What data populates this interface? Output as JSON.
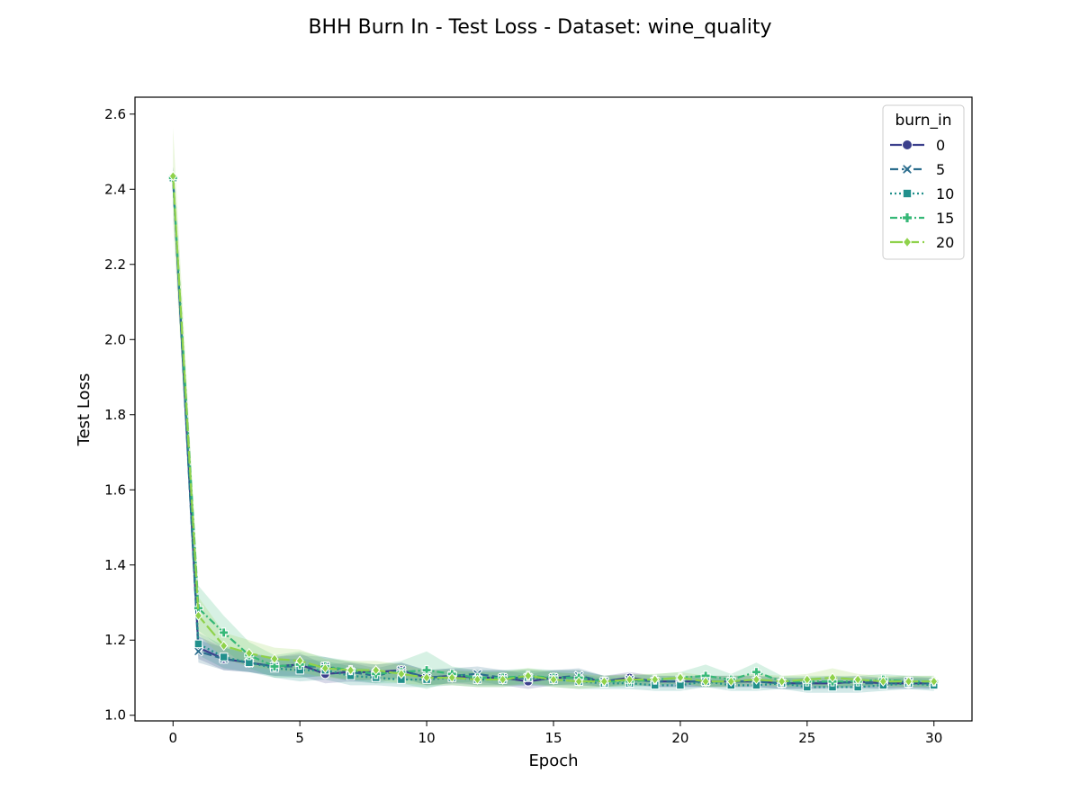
{
  "chart_data": {
    "type": "line",
    "title": "BHH Burn In - Test Loss - Dataset: wine_quality",
    "xlabel": "Epoch",
    "ylabel": "Test Loss",
    "xlim": [
      -1.5,
      31.5
    ],
    "ylim": [
      0.985,
      2.645
    ],
    "xticks": [
      0,
      5,
      10,
      15,
      20,
      25,
      30
    ],
    "yticks": [
      1.0,
      1.2,
      1.4,
      1.6,
      1.8,
      2.0,
      2.2,
      2.4,
      2.6
    ],
    "ytick_labels": [
      "1.0",
      "1.2",
      "1.4",
      "1.6",
      "1.8",
      "2.0",
      "2.2",
      "2.4",
      "2.6"
    ],
    "grid": false,
    "legend": {
      "title": "burn_in",
      "placement": "top-right"
    },
    "x": [
      0,
      1,
      2,
      3,
      4,
      5,
      6,
      7,
      8,
      9,
      10,
      11,
      12,
      13,
      14,
      15,
      16,
      17,
      18,
      19,
      20,
      21,
      22,
      23,
      24,
      25,
      26,
      27,
      28,
      29,
      30
    ],
    "series": [
      {
        "name": "0",
        "color": "#3b3f8c",
        "marker": "circle",
        "dash": "solid",
        "values": [
          2.43,
          1.18,
          1.15,
          1.14,
          1.13,
          1.135,
          1.11,
          1.115,
          1.115,
          1.12,
          1.1,
          1.105,
          1.1,
          1.1,
          1.09,
          1.1,
          1.1,
          1.09,
          1.1,
          1.09,
          1.09,
          1.09,
          1.09,
          1.09,
          1.085,
          1.085,
          1.085,
          1.09,
          1.085,
          1.085,
          1.085
        ],
        "band": [
          0.03,
          0.03,
          0.03,
          0.025,
          0.025,
          0.03,
          0.025,
          0.025,
          0.02,
          0.02,
          0.02,
          0.02,
          0.02,
          0.02,
          0.02,
          0.02,
          0.02,
          0.015,
          0.015,
          0.015,
          0.015,
          0.015,
          0.015,
          0.015,
          0.015,
          0.015,
          0.015,
          0.015,
          0.015,
          0.015,
          0.015
        ]
      },
      {
        "name": "5",
        "color": "#2c6e8e",
        "marker": "x",
        "dash": "dashed",
        "values": [
          2.43,
          1.17,
          1.15,
          1.14,
          1.13,
          1.13,
          1.13,
          1.115,
          1.105,
          1.12,
          1.1,
          1.105,
          1.11,
          1.1,
          1.1,
          1.1,
          1.105,
          1.09,
          1.095,
          1.09,
          1.09,
          1.09,
          1.09,
          1.09,
          1.085,
          1.085,
          1.09,
          1.085,
          1.085,
          1.09,
          1.085
        ],
        "band": [
          0.03,
          0.03,
          0.03,
          0.025,
          0.025,
          0.03,
          0.025,
          0.025,
          0.02,
          0.02,
          0.02,
          0.02,
          0.02,
          0.02,
          0.02,
          0.02,
          0.02,
          0.015,
          0.015,
          0.015,
          0.015,
          0.015,
          0.015,
          0.015,
          0.015,
          0.015,
          0.015,
          0.015,
          0.015,
          0.015,
          0.015
        ]
      },
      {
        "name": "10",
        "color": "#22908c",
        "marker": "square",
        "dash": "dotted",
        "values": [
          2.43,
          1.19,
          1.155,
          1.14,
          1.125,
          1.12,
          1.12,
          1.105,
          1.1,
          1.095,
          1.095,
          1.1,
          1.095,
          1.095,
          1.1,
          1.095,
          1.09,
          1.085,
          1.085,
          1.08,
          1.08,
          1.09,
          1.08,
          1.08,
          1.085,
          1.075,
          1.075,
          1.075,
          1.08,
          1.085,
          1.08
        ],
        "band": [
          0.03,
          0.03,
          0.03,
          0.025,
          0.025,
          0.03,
          0.025,
          0.025,
          0.02,
          0.02,
          0.02,
          0.02,
          0.02,
          0.02,
          0.02,
          0.02,
          0.02,
          0.015,
          0.015,
          0.015,
          0.015,
          0.015,
          0.015,
          0.015,
          0.015,
          0.015,
          0.015,
          0.015,
          0.015,
          0.015,
          0.015
        ]
      },
      {
        "name": "15",
        "color": "#36b877",
        "marker": "plus",
        "dash": "dashdot",
        "values": [
          2.43,
          1.285,
          1.22,
          1.16,
          1.13,
          1.135,
          1.13,
          1.12,
          1.11,
          1.115,
          1.12,
          1.11,
          1.1,
          1.1,
          1.105,
          1.1,
          1.1,
          1.09,
          1.09,
          1.095,
          1.1,
          1.105,
          1.095,
          1.115,
          1.09,
          1.09,
          1.09,
          1.09,
          1.095,
          1.09,
          1.09
        ],
        "band": [
          0.03,
          0.06,
          0.045,
          0.035,
          0.03,
          0.035,
          0.025,
          0.025,
          0.025,
          0.03,
          0.05,
          0.02,
          0.02,
          0.02,
          0.02,
          0.02,
          0.02,
          0.015,
          0.015,
          0.015,
          0.015,
          0.03,
          0.015,
          0.025,
          0.015,
          0.015,
          0.015,
          0.015,
          0.015,
          0.015,
          0.015
        ]
      },
      {
        "name": "20",
        "color": "#8fd24b",
        "marker": "diamond",
        "dash": "longdash",
        "values": [
          2.435,
          1.265,
          1.185,
          1.165,
          1.15,
          1.145,
          1.125,
          1.12,
          1.12,
          1.11,
          1.1,
          1.1,
          1.095,
          1.095,
          1.105,
          1.095,
          1.09,
          1.09,
          1.095,
          1.095,
          1.1,
          1.09,
          1.09,
          1.095,
          1.09,
          1.095,
          1.1,
          1.095,
          1.09,
          1.09,
          1.09
        ],
        "band": [
          0.13,
          0.05,
          0.035,
          0.035,
          0.03,
          0.03,
          0.025,
          0.025,
          0.025,
          0.025,
          0.02,
          0.02,
          0.02,
          0.02,
          0.02,
          0.02,
          0.02,
          0.015,
          0.015,
          0.015,
          0.015,
          0.015,
          0.015,
          0.015,
          0.015,
          0.015,
          0.025,
          0.015,
          0.015,
          0.015,
          0.015
        ]
      }
    ]
  }
}
